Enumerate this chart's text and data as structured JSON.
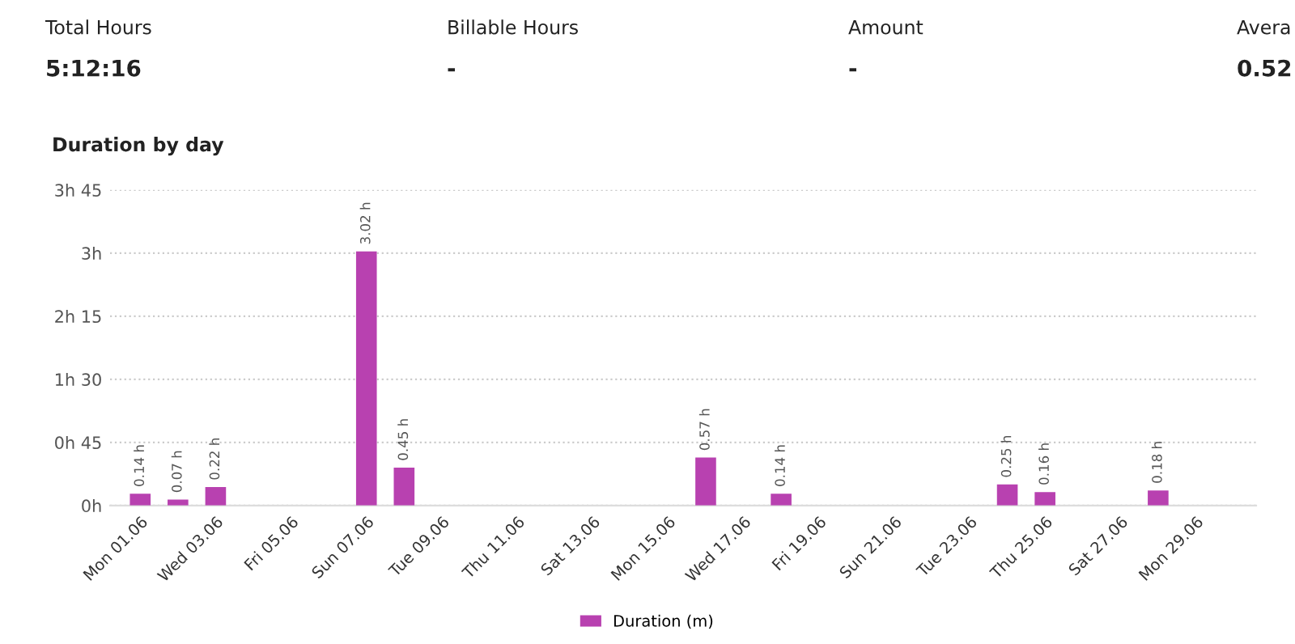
{
  "chart_data": [
    {
      "type": "other",
      "annotations": [
        "Total Hours",
        "5:12:16",
        "Billable Hours",
        "-",
        "Amount",
        "-",
        "Avera",
        "0.52"
      ]
    },
    {
      "type": "bar",
      "title": "Duration by day",
      "categories": [
        "Mon 01.06",
        null,
        "Wed 03.06",
        null,
        "Fri 05.06",
        null,
        "Sun 07.06",
        null,
        "Tue 09.06",
        null,
        "Thu 11.06",
        null,
        "Sat 13.06",
        null,
        "Mon 15.06",
        null,
        "Wed 17.06",
        null,
        "Fri 19.06",
        null,
        "Sun 21.06",
        null,
        "Tue 23.06",
        null,
        "Thu 25.06",
        null,
        "Sat 27.06",
        null,
        "Mon 29.06",
        null
      ],
      "series": [
        {
          "name": "Duration (m)",
          "color": "#b841b0",
          "values": [
            0.14,
            0.07,
            0.22,
            0,
            0,
            0,
            3.02,
            0.45,
            0,
            0,
            0,
            0,
            0,
            0,
            0,
            0.57,
            0,
            0.14,
            0,
            0,
            0,
            0,
            0,
            0.25,
            0.16,
            0,
            0,
            0.18,
            0,
            0
          ],
          "value_labels": [
            "0.14 h",
            "0.07 h",
            "0.22 h",
            null,
            null,
            null,
            "3.02 h",
            "0.45 h",
            null,
            null,
            null,
            null,
            null,
            null,
            null,
            "0.57 h",
            null,
            "0.14 h",
            null,
            null,
            null,
            null,
            null,
            "0.25 h",
            "0.16 h",
            null,
            null,
            "0.18 h",
            null,
            null
          ]
        }
      ],
      "ylim": [
        0,
        3.75
      ],
      "yticks": [
        {
          "value": 0,
          "label": "0h"
        },
        {
          "value": 0.75,
          "label": "0h 45"
        },
        {
          "value": 1.5,
          "label": "1h 30"
        },
        {
          "value": 2.25,
          "label": "2h 15"
        },
        {
          "value": 3,
          "label": "3h"
        },
        {
          "value": 3.75,
          "label": "3h 45"
        }
      ],
      "grid": "y",
      "legend": "bottom"
    }
  ]
}
